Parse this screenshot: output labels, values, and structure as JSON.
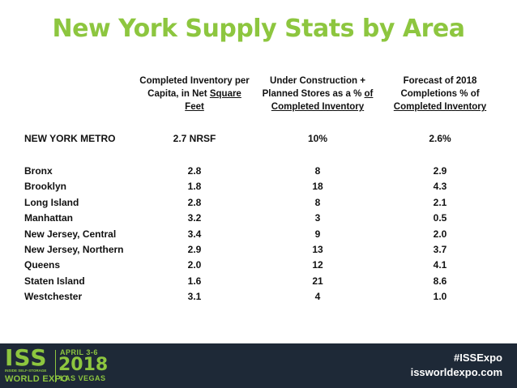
{
  "title": "New York Supply Stats by Area",
  "columns": {
    "col1": {
      "line1": "Completed Inventory per",
      "line2": "Capita, in Net",
      "line2_u": "Square",
      "line3_u": "Feet"
    },
    "col2": {
      "line1": "Under Construction +",
      "line2": "Planned Stores as a % ",
      "line2_u": "of",
      "line3_u": "Completed Inventory"
    },
    "col3": {
      "line1": "Forecast of 2018",
      "line2": "Completions % of",
      "line3_u": "Completed Inventory"
    }
  },
  "metro": {
    "name": "NEW YORK METRO",
    "v1": "2.7 NRSF",
    "v2": "10%",
    "v3": "2.6%"
  },
  "rows": [
    {
      "name": "Bronx",
      "v1": "2.8",
      "v2": "8",
      "v3": "2.9"
    },
    {
      "name": "Brooklyn",
      "v1": "1.8",
      "v2": "18",
      "v3": "4.3"
    },
    {
      "name": "Long Island",
      "v1": "2.8",
      "v2": "8",
      "v3": "2.1"
    },
    {
      "name": "Manhattan",
      "v1": "3.2",
      "v2": "3",
      "v3": "0.5"
    },
    {
      "name": "New Jersey, Central",
      "v1": "3.4",
      "v2": "9",
      "v3": "2.0"
    },
    {
      "name": "New Jersey, Northern",
      "v1": "2.9",
      "v2": "13",
      "v3": "3.7"
    },
    {
      "name": "Queens",
      "v1": "2.0",
      "v2": "12",
      "v3": "4.1"
    },
    {
      "name": "Staten Island",
      "v1": "1.6",
      "v2": "21",
      "v3": "8.6"
    },
    {
      "name": "Westchester",
      "v1": "3.1",
      "v2": "4",
      "v3": "1.0"
    }
  ],
  "footer": {
    "logo_text": "ISS",
    "logo_subtext": "INSIDE SELF-STORAGE",
    "logo_worldexpo": "WORLD EXPO",
    "dates": "APRIL 3-6",
    "year": "2018",
    "city": "LAS VEGAS",
    "hashtag": "#ISSExpo",
    "website": "issworldexpo.com"
  },
  "colors": {
    "title_green": "#8dc63f",
    "footer_bg": "#1e2937"
  }
}
